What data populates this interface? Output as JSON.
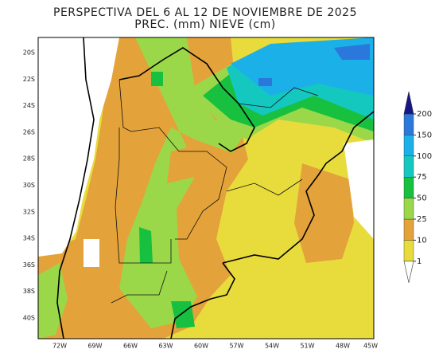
{
  "title": "PERSPECTIVA DEL 6 AL 12 DE NOVIEMBRE DE 2025",
  "subtitle": "PREC. (mm) NIEVE (cm)",
  "map": {
    "lat_labels": [
      "20S",
      "22S",
      "24S",
      "26S",
      "28S",
      "30S",
      "32S",
      "34S",
      "36S",
      "38S",
      "40S"
    ],
    "lon_labels": [
      "72W",
      "69W",
      "66W",
      "63W",
      "60W",
      "57W",
      "54W",
      "51W",
      "48W",
      "45W"
    ]
  },
  "colorbar": {
    "ticks": [
      1,
      10,
      25,
      50,
      75,
      100,
      150,
      200
    ],
    "colors": [
      "#ffffff",
      "#e8dc3c",
      "#e4a23a",
      "#9ad84a",
      "#18c040",
      "#14c8c0",
      "#1cb0e8",
      "#2a78dc",
      "#16168a"
    ]
  }
}
